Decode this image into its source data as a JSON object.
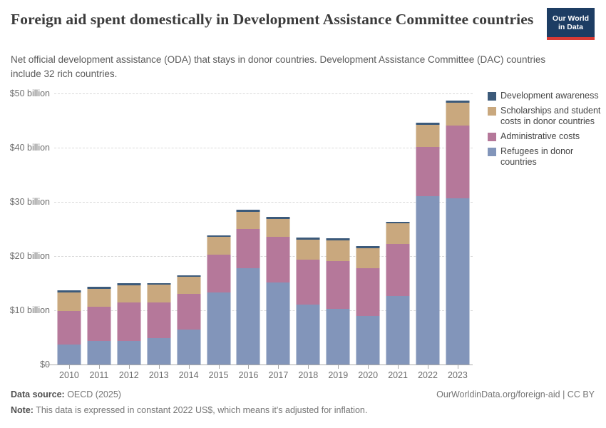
{
  "header": {
    "title": "Foreign aid spent domestically in Development Assistance Committee countries",
    "subtitle": "Net official development assistance (ODA) that stays in donor countries. Development Assistance Committee (DAC) countries include 32 rich countries.",
    "logo": {
      "line1": "Our World",
      "line2": "in Data",
      "bg_color": "#1d3d63",
      "accent_color": "#d93a34"
    }
  },
  "legend": {
    "items": [
      {
        "label": "Development awareness",
        "color": "#3c5a7a"
      },
      {
        "label": "Scholarships and student costs in donor countries",
        "color": "#c9a87e"
      },
      {
        "label": "Administrative costs",
        "color": "#b5789a"
      },
      {
        "label": "Refugees in donor countries",
        "color": "#8295ba"
      }
    ]
  },
  "chart_data": {
    "type": "bar",
    "stacked": true,
    "title": "Foreign aid spent domestically in Development Assistance Committee countries",
    "xlabel": "",
    "ylabel": "",
    "unit": "billion constant 2022 US$",
    "ylim": [
      0,
      50
    ],
    "grid": "horizontal-dashed",
    "legend_position": "right",
    "categories": [
      "2010",
      "2011",
      "2012",
      "2013",
      "2014",
      "2015",
      "2016",
      "2017",
      "2018",
      "2019",
      "2020",
      "2021",
      "2022",
      "2023"
    ],
    "series": [
      {
        "name": "Refugees in donor countries",
        "color": "#8295ba",
        "values": [
          3.7,
          4.3,
          4.4,
          4.8,
          6.4,
          13.3,
          17.7,
          15.1,
          11.1,
          10.2,
          8.9,
          12.6,
          31.0,
          30.6
        ]
      },
      {
        "name": "Administrative costs",
        "color": "#b5789a",
        "values": [
          6.2,
          6.3,
          7.0,
          6.7,
          6.6,
          7.0,
          7.3,
          8.5,
          8.2,
          8.9,
          8.8,
          9.7,
          9.1,
          13.5
        ]
      },
      {
        "name": "Scholarships and student costs in donor countries",
        "color": "#c9a87e",
        "values": [
          3.4,
          3.4,
          3.2,
          3.2,
          3.2,
          3.2,
          3.1,
          3.2,
          3.7,
          3.85,
          3.8,
          3.7,
          4.1,
          4.2
        ]
      },
      {
        "name": "Development awareness",
        "color": "#3c5a7a",
        "values": [
          0.35,
          0.35,
          0.35,
          0.3,
          0.3,
          0.35,
          0.5,
          0.4,
          0.4,
          0.35,
          0.35,
          0.35,
          0.4,
          0.35
        ]
      }
    ],
    "y_ticks": [
      {
        "value": 0,
        "label": "$0"
      },
      {
        "value": 10,
        "label": "$10 billion"
      },
      {
        "value": 20,
        "label": "$20 billion"
      },
      {
        "value": 30,
        "label": "$30 billion"
      },
      {
        "value": 40,
        "label": "$40 billion"
      },
      {
        "value": 50,
        "label": "$50 billion"
      }
    ]
  },
  "footer": {
    "datasource_label": "Data source:",
    "datasource_value": " OECD (2025)",
    "note_label": "Note:",
    "note_value": " This data is expressed in constant 2022 US$, which means it's adjusted for inflation.",
    "link": "OurWorldinData.org/foreign-aid | CC BY"
  }
}
